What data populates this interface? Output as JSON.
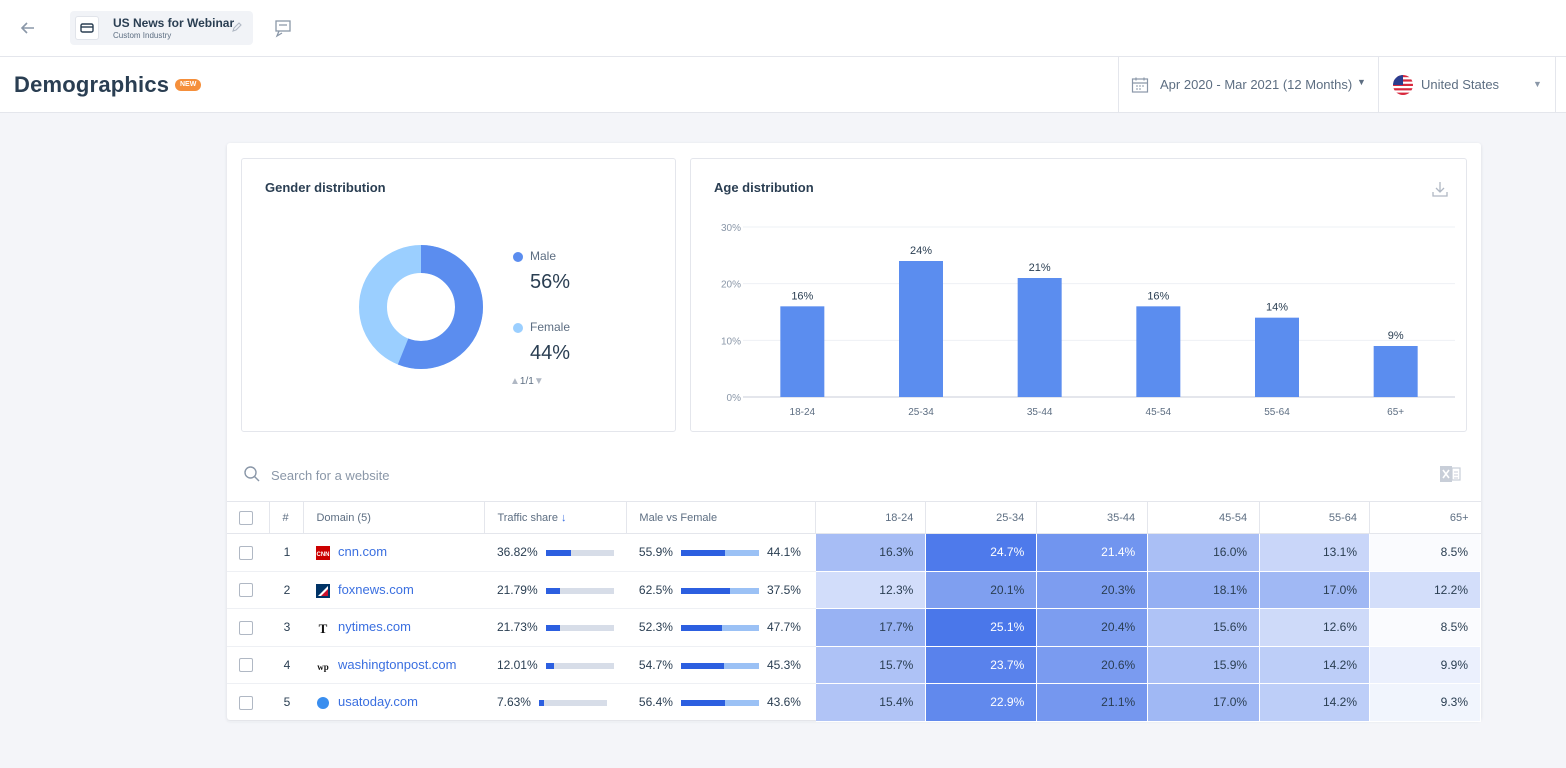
{
  "topbar": {
    "back_icon": "arrow-left-icon",
    "industry_title": "US News for Webinar",
    "industry_subtitle": "Custom Industry"
  },
  "header": {
    "title": "Demographics",
    "badge": "NEW",
    "date_range": "Apr 2020 - Mar 2021 (12 Months)",
    "country": "United States"
  },
  "gender": {
    "title": "Gender distribution",
    "male_label": "Male",
    "male_value": "56%",
    "female_label": "Female",
    "female_value": "44%",
    "pager": "1/1",
    "male_share": 0.56,
    "male_color": "#5b8def",
    "female_color": "#9bcfff"
  },
  "chart_data": {
    "type": "bar",
    "title": "Age distribution",
    "categories": [
      "18-24",
      "25-34",
      "35-44",
      "45-54",
      "55-64",
      "65+"
    ],
    "values": [
      16,
      24,
      21,
      16,
      14,
      9
    ],
    "value_labels": [
      "16%",
      "24%",
      "21%",
      "16%",
      "14%",
      "9%"
    ],
    "yticks": [
      "0%",
      "10%",
      "20%",
      "30%"
    ],
    "ylim": [
      0,
      30
    ],
    "grid": true,
    "bar_color": "#5b8def"
  },
  "search": {
    "placeholder": "Search for a website"
  },
  "table": {
    "headers": {
      "num": "#",
      "domain": "Domain (5)",
      "traffic": "Traffic share",
      "mf": "Male vs Female",
      "ages": [
        "18-24",
        "25-34",
        "35-44",
        "45-54",
        "55-64",
        "65+"
      ]
    },
    "rows": [
      {
        "n": "1",
        "domain": "cnn.com",
        "traffic": "36.82%",
        "traffic_frac": 0.3682,
        "male": "55.9%",
        "female": "44.1%",
        "male_frac": 0.559,
        "ages": [
          "16.3%",
          "24.7%",
          "21.4%",
          "16.0%",
          "13.1%",
          "8.5%"
        ],
        "age_vals": [
          16.3,
          24.7,
          21.4,
          16.0,
          13.1,
          8.5
        ]
      },
      {
        "n": "2",
        "domain": "foxnews.com",
        "traffic": "21.79%",
        "traffic_frac": 0.2179,
        "male": "62.5%",
        "female": "37.5%",
        "male_frac": 0.625,
        "ages": [
          "12.3%",
          "20.1%",
          "20.3%",
          "18.1%",
          "17.0%",
          "12.2%"
        ],
        "age_vals": [
          12.3,
          20.1,
          20.3,
          18.1,
          17.0,
          12.2
        ]
      },
      {
        "n": "3",
        "domain": "nytimes.com",
        "traffic": "21.73%",
        "traffic_frac": 0.2173,
        "male": "52.3%",
        "female": "47.7%",
        "male_frac": 0.523,
        "ages": [
          "17.7%",
          "25.1%",
          "20.4%",
          "15.6%",
          "12.6%",
          "8.5%"
        ],
        "age_vals": [
          17.7,
          25.1,
          20.4,
          15.6,
          12.6,
          8.5
        ]
      },
      {
        "n": "4",
        "domain": "washingtonpost.com",
        "traffic": "12.01%",
        "traffic_frac": 0.1201,
        "male": "54.7%",
        "female": "45.3%",
        "male_frac": 0.547,
        "ages": [
          "15.7%",
          "23.7%",
          "20.6%",
          "15.9%",
          "14.2%",
          "9.9%"
        ],
        "age_vals": [
          15.7,
          23.7,
          20.6,
          15.9,
          14.2,
          9.9
        ]
      },
      {
        "n": "5",
        "domain": "usatoday.com",
        "traffic": "7.63%",
        "traffic_frac": 0.0763,
        "male": "56.4%",
        "female": "43.6%",
        "male_frac": 0.564,
        "ages": [
          "15.4%",
          "22.9%",
          "21.1%",
          "17.0%",
          "14.2%",
          "9.3%"
        ],
        "age_vals": [
          15.4,
          22.9,
          21.1,
          17.0,
          14.2,
          9.3
        ]
      }
    ]
  }
}
